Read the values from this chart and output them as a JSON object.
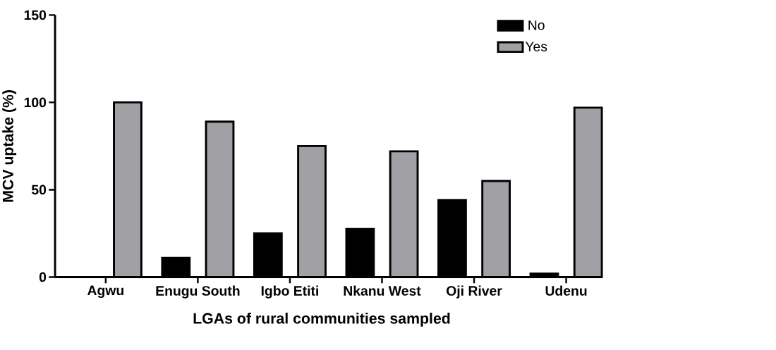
{
  "chart_data": {
    "type": "bar",
    "xlabel": "LGAs of rural communities sampled",
    "ylabel": "MCV uptake (%)",
    "categories": [
      "Agwu",
      "Enugu South",
      "Igbo Etiti",
      "Nkanu West",
      "Oji River",
      "Udenu"
    ],
    "series": [
      {
        "name": "No",
        "color": "#000000",
        "values": [
          0,
          11,
          25,
          27.5,
          44,
          2
        ]
      },
      {
        "name": "Yes",
        "color": "#a1a1a5",
        "values": [
          100,
          89,
          75,
          72,
          55,
          97
        ]
      }
    ],
    "ylim": [
      0,
      150
    ],
    "yticks": [
      0,
      50,
      100,
      150
    ],
    "legend": "top right"
  }
}
